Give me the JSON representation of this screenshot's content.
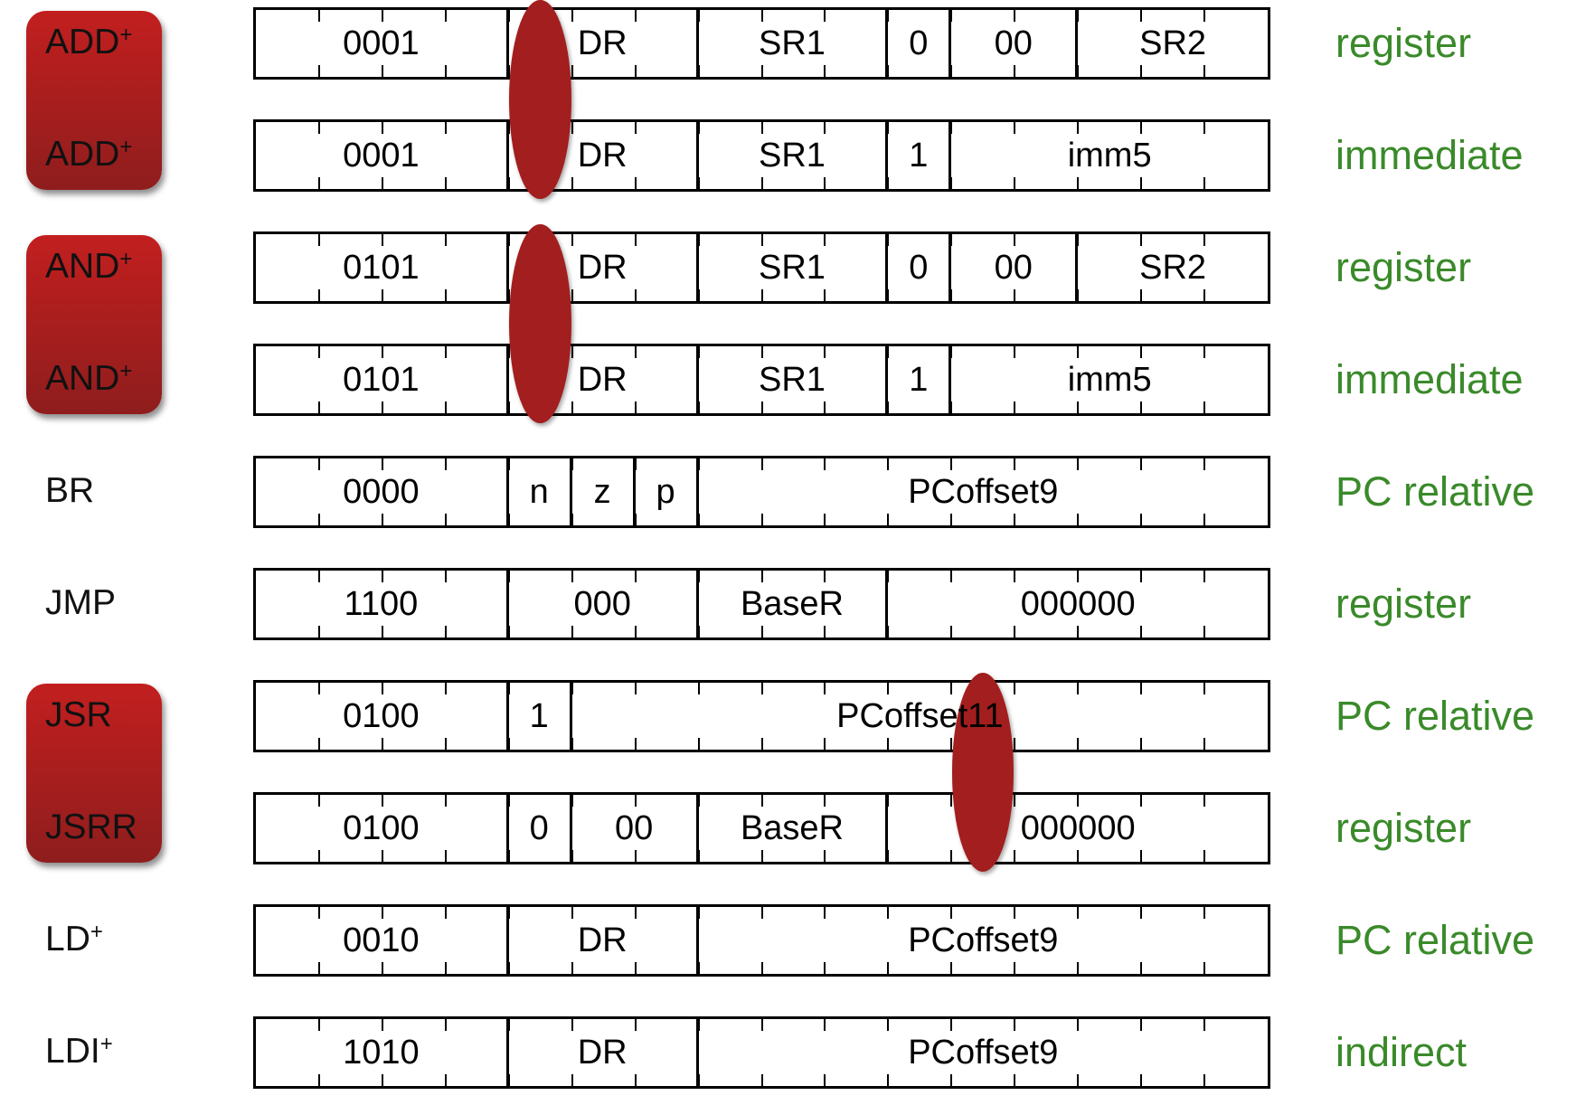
{
  "accent_colors": {
    "group_box": "#a82020",
    "mode_text": "#3a8a2a",
    "oval": "#a31e1e"
  },
  "rows": [
    {
      "mnemonic": "ADD",
      "plus": true,
      "mode": "register",
      "fields": [
        {
          "label": "0001",
          "bits": 4
        },
        {
          "label": "DR",
          "bits": 3
        },
        {
          "label": "SR1",
          "bits": 3
        },
        {
          "label": "0",
          "bits": 1
        },
        {
          "label": "00",
          "bits": 2
        },
        {
          "label": "SR2",
          "bits": 3
        }
      ]
    },
    {
      "mnemonic": "ADD",
      "plus": true,
      "mode": "immediate",
      "fields": [
        {
          "label": "0001",
          "bits": 4
        },
        {
          "label": "DR",
          "bits": 3
        },
        {
          "label": "SR1",
          "bits": 3
        },
        {
          "label": "1",
          "bits": 1
        },
        {
          "label": "imm5",
          "bits": 5
        }
      ]
    },
    {
      "mnemonic": "AND",
      "plus": true,
      "mode": "register",
      "fields": [
        {
          "label": "0101",
          "bits": 4
        },
        {
          "label": "DR",
          "bits": 3
        },
        {
          "label": "SR1",
          "bits": 3
        },
        {
          "label": "0",
          "bits": 1
        },
        {
          "label": "00",
          "bits": 2
        },
        {
          "label": "SR2",
          "bits": 3
        }
      ]
    },
    {
      "mnemonic": "AND",
      "plus": true,
      "mode": "immediate",
      "fields": [
        {
          "label": "0101",
          "bits": 4
        },
        {
          "label": "DR",
          "bits": 3
        },
        {
          "label": "SR1",
          "bits": 3
        },
        {
          "label": "1",
          "bits": 1
        },
        {
          "label": "imm5",
          "bits": 5
        }
      ]
    },
    {
      "mnemonic": "BR",
      "plus": false,
      "mode": "PC relative",
      "fields": [
        {
          "label": "0000",
          "bits": 4
        },
        {
          "label": "n",
          "bits": 1
        },
        {
          "label": "z",
          "bits": 1
        },
        {
          "label": "p",
          "bits": 1
        },
        {
          "label": "PCoffset9",
          "bits": 9
        }
      ]
    },
    {
      "mnemonic": "JMP",
      "plus": false,
      "mode": "register",
      "fields": [
        {
          "label": "1100",
          "bits": 4
        },
        {
          "label": "000",
          "bits": 3
        },
        {
          "label": "BaseR",
          "bits": 3
        },
        {
          "label": "000000",
          "bits": 6
        }
      ]
    },
    {
      "mnemonic": "JSR",
      "plus": false,
      "mode": "PC relative",
      "fields": [
        {
          "label": "0100",
          "bits": 4
        },
        {
          "label": "1",
          "bits": 1
        },
        {
          "label": "PCoffset11",
          "bits": 11
        }
      ]
    },
    {
      "mnemonic": "JSRR",
      "plus": false,
      "mode": "register",
      "fields": [
        {
          "label": "0100",
          "bits": 4
        },
        {
          "label": "0",
          "bits": 1
        },
        {
          "label": "00",
          "bits": 2
        },
        {
          "label": "BaseR",
          "bits": 3
        },
        {
          "label": "000000",
          "bits": 6
        }
      ]
    },
    {
      "mnemonic": "LD",
      "plus": true,
      "mode": "PC relative",
      "fields": [
        {
          "label": "0010",
          "bits": 4
        },
        {
          "label": "DR",
          "bits": 3
        },
        {
          "label": "PCoffset9",
          "bits": 9
        }
      ]
    },
    {
      "mnemonic": "LDI",
      "plus": true,
      "mode": "indirect",
      "fields": [
        {
          "label": "1010",
          "bits": 4
        },
        {
          "label": "DR",
          "bits": 3
        },
        {
          "label": "PCoffset9",
          "bits": 9
        }
      ]
    }
  ],
  "groups": [
    {
      "rows": [
        0,
        1
      ]
    },
    {
      "rows": [
        2,
        3
      ]
    },
    {
      "rows": [
        6,
        7
      ]
    }
  ],
  "ovals": [
    {
      "rows": [
        0,
        1
      ],
      "bit": 11
    },
    {
      "rows": [
        2,
        3
      ],
      "bit": 11
    },
    {
      "rows": [
        6,
        7
      ],
      "bit": 4
    }
  ]
}
